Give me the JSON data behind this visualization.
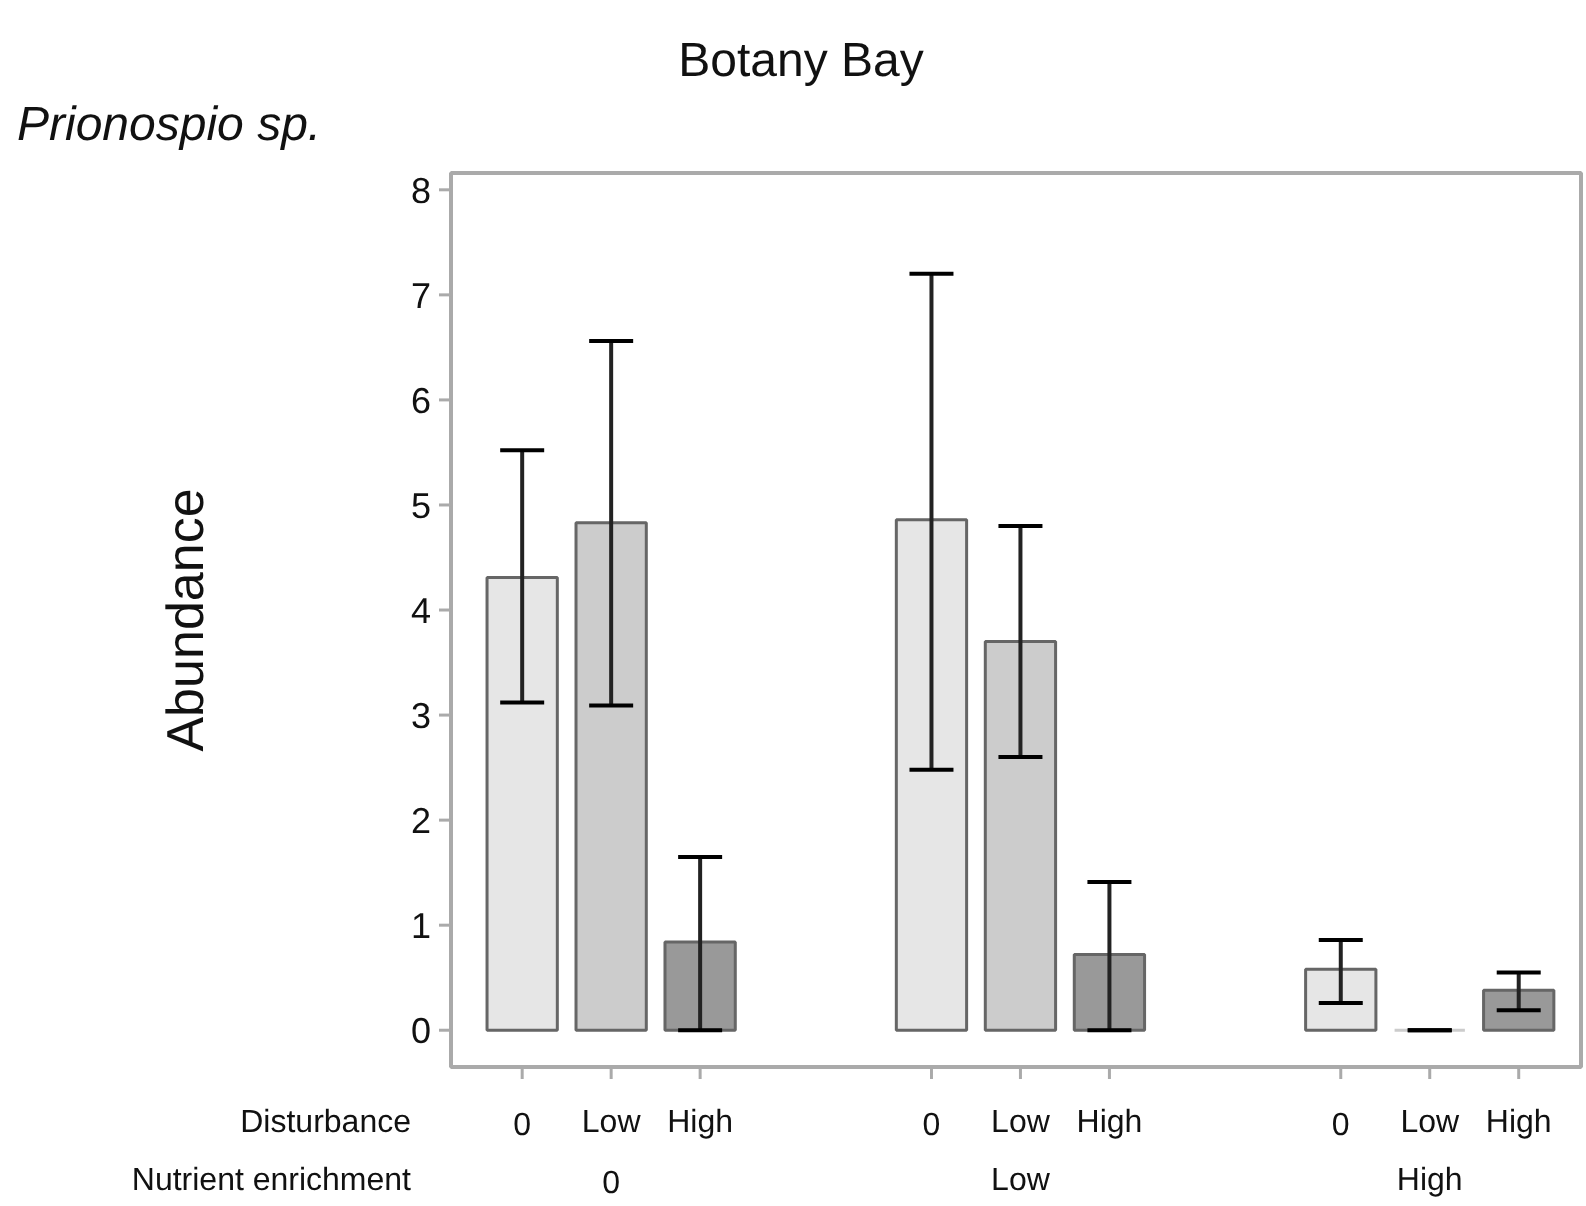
{
  "chart_data": {
    "type": "bar",
    "title": "Botany Bay",
    "subtitle": "Prionospio sp.",
    "ylabel": "Abundance",
    "categories": [
      "0",
      "Low",
      "High",
      "0",
      "Low",
      "High",
      "0",
      "Low",
      "High"
    ],
    "values": [
      4.31,
      4.83,
      0.84,
      4.86,
      3.7,
      0.72,
      0.58,
      0,
      0.38
    ],
    "colors": [
      "#e6e6e6",
      "#cccccc",
      "#999999",
      "#e6e6e6",
      "#cccccc",
      "#999999",
      "#e6e6e6",
      "#cccccc",
      "#999999"
    ],
    "errors": [
      [
        3.12,
        5.52
      ],
      [
        3.09,
        6.56
      ],
      [
        0,
        1.65
      ],
      [
        2.48,
        7.2
      ],
      [
        2.6,
        4.8
      ],
      [
        0,
        1.41
      ],
      [
        0.26,
        0.86
      ],
      [
        0,
        0
      ],
      [
        0.19,
        0.55
      ]
    ],
    "annotations": [
      "Disturbance",
      "Nutrient enrichment",
      "0",
      "Low",
      "High"
    ],
    "ylim": [
      -0.35,
      8.16
    ],
    "yticks": [
      0,
      1,
      2,
      3,
      4,
      5,
      6,
      7,
      8
    ],
    "grid": false
  }
}
